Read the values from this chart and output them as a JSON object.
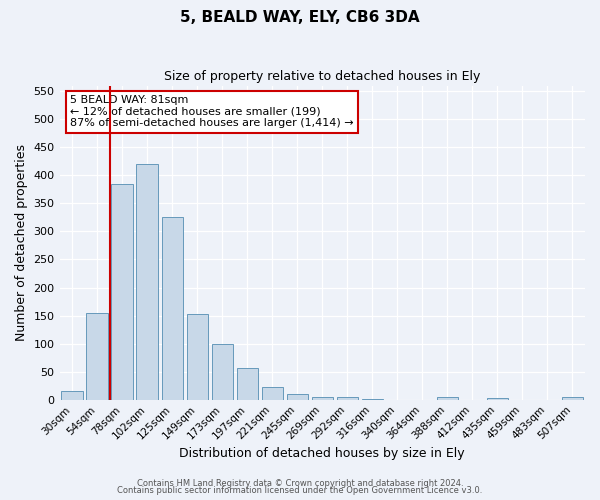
{
  "title": "5, BEALD WAY, ELY, CB6 3DA",
  "subtitle": "Size of property relative to detached houses in Ely",
  "xlabel": "Distribution of detached houses by size in Ely",
  "ylabel": "Number of detached properties",
  "categories": [
    "30sqm",
    "54sqm",
    "78sqm",
    "102sqm",
    "125sqm",
    "149sqm",
    "173sqm",
    "197sqm",
    "221sqm",
    "245sqm",
    "269sqm",
    "292sqm",
    "316sqm",
    "340sqm",
    "364sqm",
    "388sqm",
    "412sqm",
    "435sqm",
    "459sqm",
    "483sqm",
    "507sqm"
  ],
  "values": [
    15,
    155,
    385,
    420,
    325,
    152,
    100,
    57,
    22,
    10,
    5,
    5,
    2,
    0,
    0,
    5,
    0,
    3,
    0,
    0,
    4
  ],
  "bar_color": "#c8d8e8",
  "bar_edge_color": "#6699bb",
  "vline_color": "#cc0000",
  "vline_x_index": 2,
  "annotation_text": "5 BEALD WAY: 81sqm\n← 12% of detached houses are smaller (199)\n87% of semi-detached houses are larger (1,414) →",
  "annotation_box_color": "#ffffff",
  "annotation_box_edge_color": "#cc0000",
  "ylim": [
    0,
    560
  ],
  "yticks": [
    0,
    50,
    100,
    150,
    200,
    250,
    300,
    350,
    400,
    450,
    500,
    550
  ],
  "background_color": "#eef2f9",
  "grid_color": "#ffffff",
  "footer_line1": "Contains HM Land Registry data © Crown copyright and database right 2024.",
  "footer_line2": "Contains public sector information licensed under the Open Government Licence v3.0."
}
